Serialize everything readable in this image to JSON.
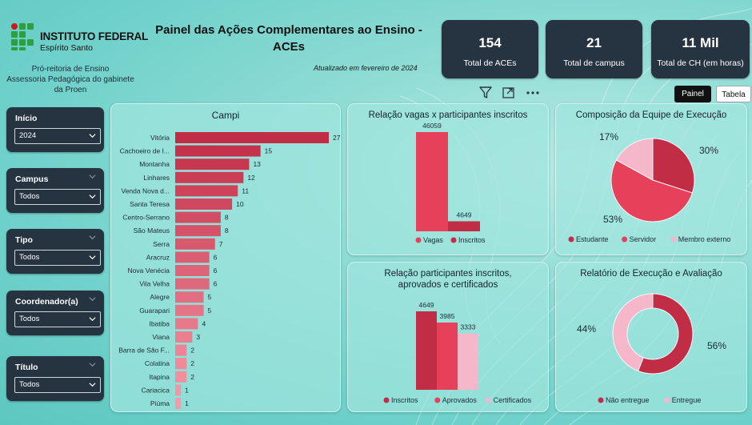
{
  "colors": {
    "dark_card": "#263340",
    "red_dark": "#c22d46",
    "red_mid": "#e7405a",
    "red_light": "#ee6c83",
    "pink": "#f7b7cb",
    "bar_gradient_start": "#c22d46",
    "bar_gradient_end": "#f79aa9"
  },
  "header": {
    "logo_name": "INSTITUTO FEDERAL",
    "logo_sub": "Espírito Santo",
    "proen_line1": "Pró-reitoria de Ensino",
    "proen_line2": "Assessoria Pedagógica do gabinete",
    "proen_line3": "da Proen",
    "title_line1": "Painel das Ações Complementares ao Ensino -",
    "title_line2": "ACEs",
    "updated": "Atualizado em fevereiro de 2024"
  },
  "kpis": [
    {
      "value": "154",
      "label": "Total de ACEs"
    },
    {
      "value": "21",
      "label": "Total de campus"
    },
    {
      "value": "11 Mil",
      "label": "Total de CH (em horas)"
    }
  ],
  "toolbar": {
    "icons": [
      "filter-icon",
      "focus-mode-icon",
      "more-options-icon"
    ],
    "tab_active": "Painel",
    "tab_inactive": "Tabela"
  },
  "filters": [
    {
      "label": "Início",
      "value": "2024"
    },
    {
      "label": "Campus",
      "value": "Todos"
    },
    {
      "label": "Tipo",
      "value": "Todos"
    },
    {
      "label": "Coordenador(a)",
      "value": "Todos"
    },
    {
      "label": "Título",
      "value": "Todos"
    }
  ],
  "chart_data": [
    {
      "type": "bar",
      "orientation": "horizontal",
      "title": "Campi",
      "categories": [
        "Vitória",
        "Cachoeiro de I...",
        "Montanha",
        "Linhares",
        "Venda Nova d...",
        "Santa Teresa",
        "Centro-Serrano",
        "São Mateus",
        "Serra",
        "Aracruz",
        "Nova Venécia",
        "Vila Velha",
        "Alegre",
        "Guarapari",
        "Ibatiba",
        "Viana",
        "Barra de São F...",
        "Colatina",
        "Itapina",
        "Cariacica",
        "Piúma"
      ],
      "values": [
        27,
        15,
        13,
        12,
        11,
        10,
        8,
        8,
        7,
        6,
        6,
        6,
        5,
        5,
        4,
        3,
        2,
        2,
        2,
        1,
        1
      ],
      "xlim": [
        0,
        27
      ]
    },
    {
      "type": "bar",
      "title": "Relação vagas x participantes inscritos",
      "categories": [
        "Vagas",
        "Inscritos"
      ],
      "values": [
        46059,
        4649
      ],
      "legend": [
        "Vagas",
        "Inscritos"
      ],
      "legend_position": "bottom"
    },
    {
      "type": "pie",
      "title": "Composição da Equipe de Execução",
      "labels": [
        "Estudante",
        "Servidor",
        "Membro externo"
      ],
      "values": [
        30,
        53,
        17
      ],
      "value_labels": [
        "30%",
        "53%",
        "17%"
      ],
      "legend_position": "bottom"
    },
    {
      "type": "bar",
      "title": "Relação participantes inscritos, aprovados e certificados",
      "title_line1": "Relação participantes inscritos,",
      "title_line2": "aprovados e certificados",
      "categories": [
        "Inscritos",
        "Aprovados",
        "Certificados"
      ],
      "values": [
        4649,
        3985,
        3333
      ],
      "legend": [
        "Inscritos",
        "Aprovados",
        "Certificados"
      ],
      "legend_position": "bottom"
    },
    {
      "type": "pie",
      "subtype": "donut",
      "title": "Relatório de Execução e Avaliação",
      "labels": [
        "Não entregue",
        "Entregue"
      ],
      "values": [
        56,
        44
      ],
      "value_labels": [
        "56%",
        "44%"
      ],
      "legend_position": "bottom"
    }
  ]
}
